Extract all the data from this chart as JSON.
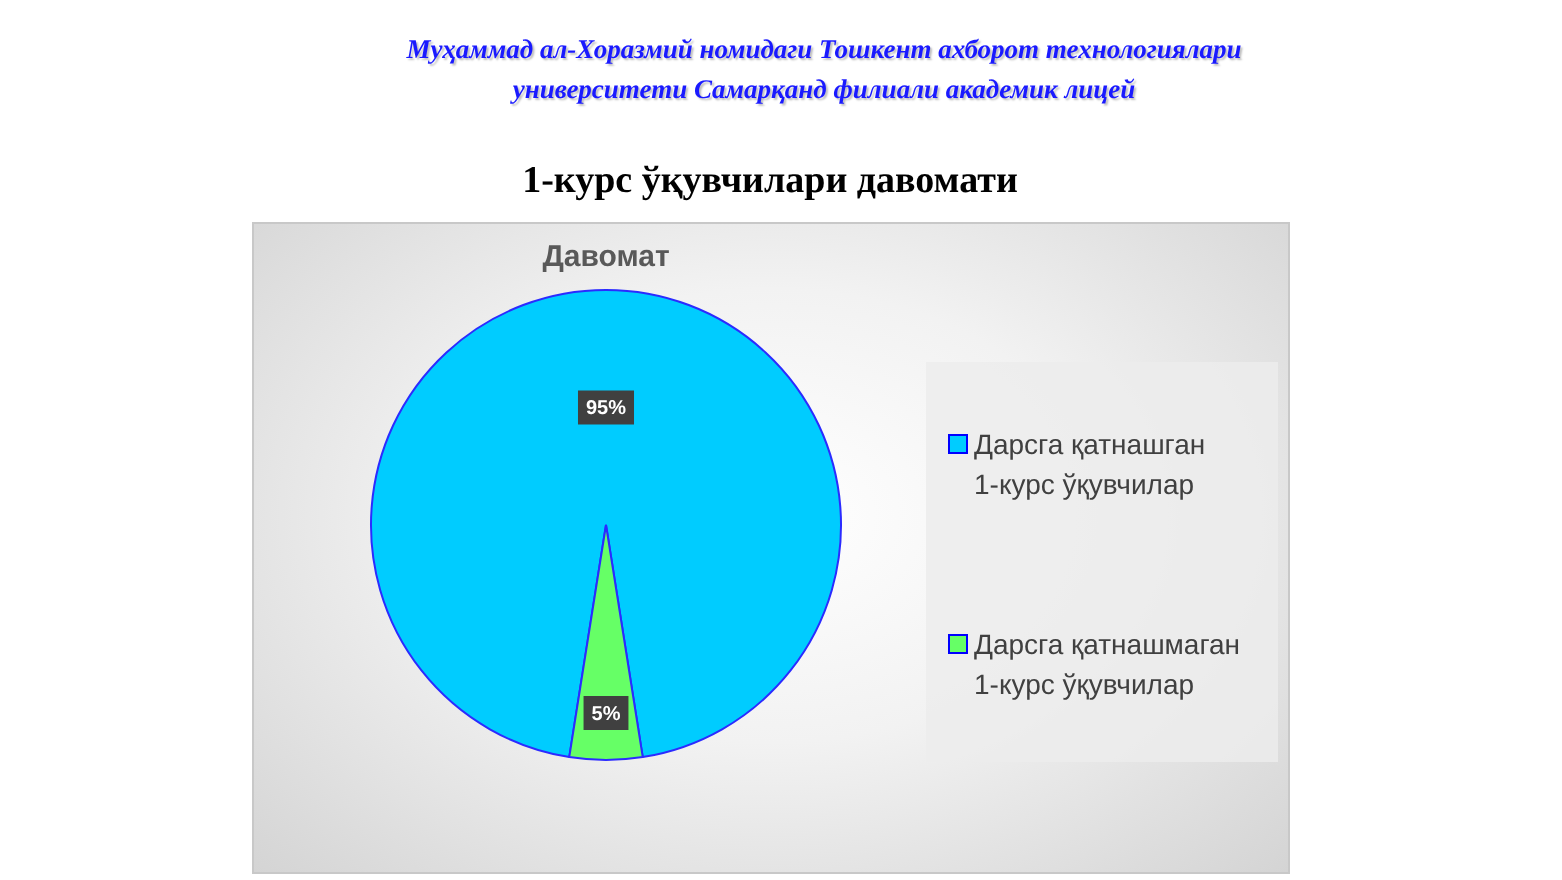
{
  "chart_data": {
    "type": "pie",
    "title": "1-курс ўқувчилари давомати",
    "subtitle": "Давомат",
    "annotations": [
      "Муҳаммад ал-Хоразмий номидаги Тошкент ахборот технологиялари университети Самарқанд филиали академик лицей"
    ],
    "categories": [
      "Дарсга қатнашган 1-курс ўқувчилар",
      "Дарсга қатнашмаган 1-курс ўқувчилар"
    ],
    "values": [
      95,
      5
    ],
    "colors": [
      "#00ccff",
      "#66ff66"
    ],
    "value_labels": [
      "95%",
      "5%"
    ],
    "legend": "right"
  }
}
